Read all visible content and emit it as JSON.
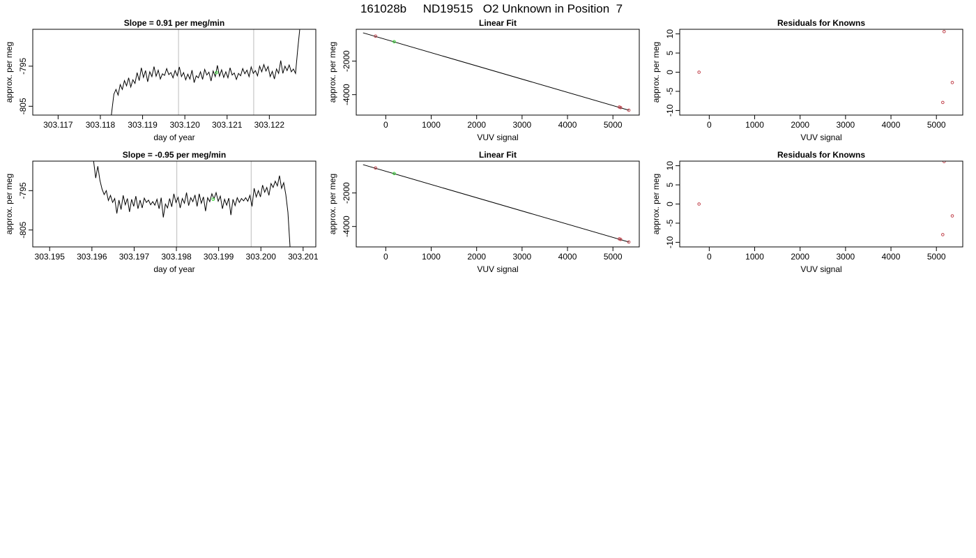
{
  "figure_title": "161028b     ND19515   O2 Unknown in Position  7",
  "colors": {
    "unknown": "#33dd33",
    "known": "#c0404a",
    "line": "#000000",
    "vline": "#bbbbbb"
  },
  "chart_data": [
    {
      "id": "top-time",
      "type": "line",
      "title": "Slope =  0.91  per meg/min",
      "xlabel": "day of year",
      "ylabel": "approx. per meg",
      "xlim": [
        303.1164,
        303.1231
      ],
      "ylim": [
        -807.2,
        -785.8
      ],
      "xticks": [
        303.117,
        303.118,
        303.119,
        303.12,
        303.121,
        303.122
      ],
      "xtick_labels": [
        "303.117",
        "303.118",
        "303.119",
        "303.120",
        "303.121",
        "303.122"
      ],
      "yticks": [
        -795,
        -805
      ],
      "ytick_labels": [
        "-795",
        "-805"
      ],
      "vlines": [
        303.11985,
        303.12163
      ],
      "series": [
        {
          "values": [
            [
              303.11826,
              -807.2
            ],
            [
              303.11832,
              -802.0
            ],
            [
              303.11837,
              -800.8
            ],
            [
              303.11842,
              -802.2
            ],
            [
              303.11847,
              -799.6
            ],
            [
              303.11852,
              -800.8
            ],
            [
              303.11857,
              -798.6
            ],
            [
              303.11862,
              -799.9
            ],
            [
              303.11867,
              -797.9
            ],
            [
              303.11872,
              -800.2
            ],
            [
              303.11877,
              -798.4
            ],
            [
              303.11882,
              -799.3
            ],
            [
              303.11887,
              -796.6
            ],
            [
              303.11892,
              -798.6
            ],
            [
              303.11897,
              -795.4
            ],
            [
              303.11902,
              -797.8
            ],
            [
              303.11907,
              -796.1
            ],
            [
              303.11912,
              -798.9
            ],
            [
              303.11917,
              -796.4
            ],
            [
              303.11922,
              -797.6
            ],
            [
              303.11927,
              -795.1
            ],
            [
              303.11932,
              -797.5
            ],
            [
              303.11937,
              -796.0
            ],
            [
              303.11942,
              -798.2
            ],
            [
              303.11947,
              -796.9
            ],
            [
              303.11952,
              -797.3
            ],
            [
              303.11957,
              -795.6
            ],
            [
              303.11962,
              -797.1
            ],
            [
              303.11967,
              -796.6
            ],
            [
              303.11972,
              -797.9
            ],
            [
              303.11977,
              -796.1
            ],
            [
              303.11982,
              -797.4
            ],
            [
              303.11987,
              -795.2
            ],
            [
              303.11992,
              -797.6
            ],
            [
              303.11997,
              -796.6
            ],
            [
              303.12002,
              -798.4
            ],
            [
              303.12007,
              -797.0
            ],
            [
              303.12012,
              -798.2
            ],
            [
              303.12017,
              -796.0
            ],
            [
              303.12022,
              -799.1
            ],
            [
              303.12027,
              -797.4
            ],
            [
              303.12032,
              -797.9
            ],
            [
              303.12037,
              -796.4
            ],
            [
              303.12042,
              -798.3
            ],
            [
              303.12047,
              -795.8
            ],
            [
              303.12052,
              -797.2
            ],
            [
              303.12057,
              -796.5
            ],
            [
              303.12062,
              -798.7
            ],
            [
              303.12067,
              -796.2
            ],
            [
              303.12072,
              -797.6
            ],
            [
              303.12077,
              -794.8
            ],
            [
              303.12082,
              -797.5
            ],
            [
              303.12087,
              -795.9
            ],
            [
              303.12092,
              -797.8
            ],
            [
              303.12097,
              -796.4
            ],
            [
              303.12102,
              -797.9
            ],
            [
              303.12107,
              -795.4
            ],
            [
              303.12112,
              -797.2
            ],
            [
              303.12117,
              -796.7
            ],
            [
              303.12122,
              -798.3
            ],
            [
              303.12127,
              -796.8
            ],
            [
              303.12132,
              -797.4
            ],
            [
              303.12137,
              -795.6
            ],
            [
              303.12142,
              -796.9
            ],
            [
              303.12147,
              -796.0
            ],
            [
              303.12152,
              -797.6
            ],
            [
              303.12157,
              -795.2
            ],
            [
              303.12162,
              -796.8
            ],
            [
              303.12167,
              -796.1
            ],
            [
              303.12172,
              -797.4
            ],
            [
              303.12177,
              -795.0
            ],
            [
              303.12182,
              -796.4
            ],
            [
              303.12187,
              -794.6
            ],
            [
              303.12192,
              -796.2
            ],
            [
              303.12197,
              -795.1
            ],
            [
              303.12202,
              -797.6
            ],
            [
              303.12207,
              -796.3
            ],
            [
              303.12212,
              -798.2
            ],
            [
              303.12217,
              -795.7
            ],
            [
              303.12222,
              -796.8
            ],
            [
              303.12227,
              -793.6
            ],
            [
              303.12232,
              -796.8
            ],
            [
              303.12237,
              -795.0
            ],
            [
              303.12242,
              -796.1
            ],
            [
              303.12247,
              -794.7
            ],
            [
              303.12252,
              -796.4
            ],
            [
              303.12257,
              -795.7
            ],
            [
              303.12262,
              -796.8
            ],
            [
              303.12267,
              -791.0
            ],
            [
              303.12272,
              -785.8
            ]
          ]
        }
      ],
      "unknown_point": [
        303.12075,
        -796.6
      ]
    },
    {
      "id": "top-linear",
      "type": "scatter",
      "title": "Linear Fit",
      "xlabel": "VUV signal",
      "ylabel": "approx. per meg",
      "xlim": [
        -650,
        5580
      ],
      "ylim": [
        -5220,
        -100
      ],
      "xticks": [
        0,
        1000,
        2000,
        3000,
        4000,
        5000
      ],
      "xtick_labels": [
        "0",
        "1000",
        "2000",
        "3000",
        "4000",
        "5000"
      ],
      "yticks": [
        -2000,
        -4000
      ],
      "ytick_labels": [
        "-2000",
        "-4000"
      ],
      "fit_line": [
        [
          -500,
          -310
        ],
        [
          5350,
          -4930
        ]
      ],
      "known_points": [
        [
          -225,
          -510
        ],
        [
          5140,
          -4740
        ],
        [
          5170,
          -4770
        ],
        [
          5350,
          -4930
        ]
      ],
      "unknown_points": [
        [
          185,
          -840
        ]
      ]
    },
    {
      "id": "top-residuals",
      "type": "scatter",
      "title": "Residuals for Knowns",
      "xlabel": "VUV signal",
      "ylabel": "approx. per meg",
      "xlim": [
        -650,
        5580
      ],
      "ylim": [
        -11.2,
        11.2
      ],
      "xticks": [
        0,
        1000,
        2000,
        3000,
        4000,
        5000
      ],
      "xtick_labels": [
        "0",
        "1000",
        "2000",
        "3000",
        "4000",
        "5000"
      ],
      "yticks": [
        10,
        5,
        0,
        -5,
        -10
      ],
      "ytick_labels": [
        "10",
        "5",
        "0",
        "-5",
        "-10"
      ],
      "known_points": [
        [
          -225,
          0.0
        ],
        [
          5170,
          10.6
        ],
        [
          5350,
          -2.7
        ],
        [
          5140,
          -7.9
        ]
      ]
    },
    {
      "id": "bottom-time",
      "type": "line",
      "title": "Slope =  -0.95  per meg/min",
      "xlabel": "day of year",
      "ylabel": "approx. per meg",
      "xlim": [
        303.1946,
        303.2013
      ],
      "ylim": [
        -809.3,
        -787.5
      ],
      "xticks": [
        303.195,
        303.196,
        303.197,
        303.198,
        303.199,
        303.2,
        303.201
      ],
      "xtick_labels": [
        "303.195",
        "303.196",
        "303.197",
        "303.198",
        "303.199",
        "303.200",
        "303.201"
      ],
      "yticks": [
        -795,
        -805
      ],
      "ytick_labels": [
        "-795",
        "-805"
      ],
      "vlines": [
        303.19801,
        303.19977
      ],
      "series": [
        {
          "values": [
            [
              303.19604,
              -787.5
            ],
            [
              303.19609,
              -791.8
            ],
            [
              303.19614,
              -788.8
            ],
            [
              303.19619,
              -792.4
            ],
            [
              303.19624,
              -794.6
            ],
            [
              303.19629,
              -796.0
            ],
            [
              303.19634,
              -795.0
            ],
            [
              303.19639,
              -797.5
            ],
            [
              303.19644,
              -796.2
            ],
            [
              303.19649,
              -798.0
            ],
            [
              303.19654,
              -797.0
            ],
            [
              303.19659,
              -800.8
            ],
            [
              303.19664,
              -797.4
            ],
            [
              303.19669,
              -799.8
            ],
            [
              303.19674,
              -796.2
            ],
            [
              303.19679,
              -798.6
            ],
            [
              303.19684,
              -797.0
            ],
            [
              303.19689,
              -800.4
            ],
            [
              303.19694,
              -797.2
            ],
            [
              303.19699,
              -799.0
            ],
            [
              303.19704,
              -796.4
            ],
            [
              303.19709,
              -799.6
            ],
            [
              303.19714,
              -797.4
            ],
            [
              303.19719,
              -799.4
            ],
            [
              303.19724,
              -796.9
            ],
            [
              303.19729,
              -798.0
            ],
            [
              303.19734,
              -797.4
            ],
            [
              303.19739,
              -798.6
            ],
            [
              303.19744,
              -797.8
            ],
            [
              303.19749,
              -798.7
            ],
            [
              303.19754,
              -797.2
            ],
            [
              303.19759,
              -799.6
            ],
            [
              303.19764,
              -796.8
            ],
            [
              303.19769,
              -801.8
            ],
            [
              303.19774,
              -798.4
            ],
            [
              303.19779,
              -799.4
            ],
            [
              303.19784,
              -797.0
            ],
            [
              303.19789,
              -799.1
            ],
            [
              303.19794,
              -795.8
            ],
            [
              303.19799,
              -798.0
            ],
            [
              303.19804,
              -796.7
            ],
            [
              303.19809,
              -799.4
            ],
            [
              303.19814,
              -797.0
            ],
            [
              303.19819,
              -798.2
            ],
            [
              303.19824,
              -795.5
            ],
            [
              303.19829,
              -798.8
            ],
            [
              303.19834,
              -796.8
            ],
            [
              303.19839,
              -797.8
            ],
            [
              303.19844,
              -796.1
            ],
            [
              303.19849,
              -799.0
            ],
            [
              303.19854,
              -795.8
            ],
            [
              303.19859,
              -798.2
            ],
            [
              303.19864,
              -796.6
            ],
            [
              303.19869,
              -800.2
            ],
            [
              303.19874,
              -796.8
            ],
            [
              303.19879,
              -797.8
            ],
            [
              303.19884,
              -795.8
            ],
            [
              303.19889,
              -797.1
            ],
            [
              303.19894,
              -795.5
            ],
            [
              303.19899,
              -797.7
            ],
            [
              303.19904,
              -796.4
            ],
            [
              303.19909,
              -799.6
            ],
            [
              303.19914,
              -797.2
            ],
            [
              303.19919,
              -798.7
            ],
            [
              303.19924,
              -796.9
            ],
            [
              303.19929,
              -801.2
            ],
            [
              303.19934,
              -797.2
            ],
            [
              303.19939,
              -798.8
            ],
            [
              303.19944,
              -796.8
            ],
            [
              303.19949,
              -798.0
            ],
            [
              303.19954,
              -797.0
            ],
            [
              303.19959,
              -797.6
            ],
            [
              303.19964,
              -796.8
            ],
            [
              303.19969,
              -797.7
            ],
            [
              303.19974,
              -796.2
            ],
            [
              303.19979,
              -799.0
            ],
            [
              303.19984,
              -794.4
            ],
            [
              303.19989,
              -796.6
            ],
            [
              303.19994,
              -795.0
            ],
            [
              303.19999,
              -796.6
            ],
            [
              303.20004,
              -793.6
            ],
            [
              303.20009,
              -795.4
            ],
            [
              303.20014,
              -794.2
            ],
            [
              303.20019,
              -796.2
            ],
            [
              303.20024,
              -793.2
            ],
            [
              303.20029,
              -794.2
            ],
            [
              303.20034,
              -792.6
            ],
            [
              303.20039,
              -793.8
            ],
            [
              303.20044,
              -791.2
            ],
            [
              303.20049,
              -794.4
            ],
            [
              303.20054,
              -793.0
            ],
            [
              303.20059,
              -796.0
            ],
            [
              303.20064,
              -800.5
            ],
            [
              303.20069,
              -809.3
            ]
          ]
        }
      ],
      "unknown_point": [
        303.19887,
        -797.2
      ]
    },
    {
      "id": "bottom-linear",
      "type": "scatter",
      "title": "Linear Fit",
      "xlabel": "VUV signal",
      "ylabel": "approx. per meg",
      "xlim": [
        -650,
        5580
      ],
      "ylim": [
        -5220,
        -100
      ],
      "xticks": [
        0,
        1000,
        2000,
        3000,
        4000,
        5000
      ],
      "xtick_labels": [
        "0",
        "1000",
        "2000",
        "3000",
        "4000",
        "5000"
      ],
      "yticks": [
        -2000,
        -4000
      ],
      "ytick_labels": [
        "-2000",
        "-4000"
      ],
      "fit_line": [
        [
          -500,
          -310
        ],
        [
          5350,
          -4930
        ]
      ],
      "known_points": [
        [
          -225,
          -510
        ],
        [
          5140,
          -4740
        ],
        [
          5170,
          -4770
        ],
        [
          5350,
          -4930
        ]
      ],
      "unknown_points": [
        [
          185,
          -840
        ]
      ]
    },
    {
      "id": "bottom-residuals",
      "type": "scatter",
      "title": "Residuals for Knowns",
      "xlabel": "VUV signal",
      "ylabel": "approx. per meg",
      "xlim": [
        -650,
        5580
      ],
      "ylim": [
        -11.2,
        11.2
      ],
      "xticks": [
        0,
        1000,
        2000,
        3000,
        4000,
        5000
      ],
      "xtick_labels": [
        "0",
        "1000",
        "2000",
        "3000",
        "4000",
        "5000"
      ],
      "yticks": [
        10,
        5,
        0,
        -5,
        -10
      ],
      "ytick_labels": [
        "10",
        "5",
        "0",
        "-5",
        "-10"
      ],
      "known_points": [
        [
          -225,
          0.0
        ],
        [
          5170,
          11.1
        ],
        [
          5350,
          -3.1
        ],
        [
          5140,
          -8.0
        ]
      ]
    }
  ]
}
